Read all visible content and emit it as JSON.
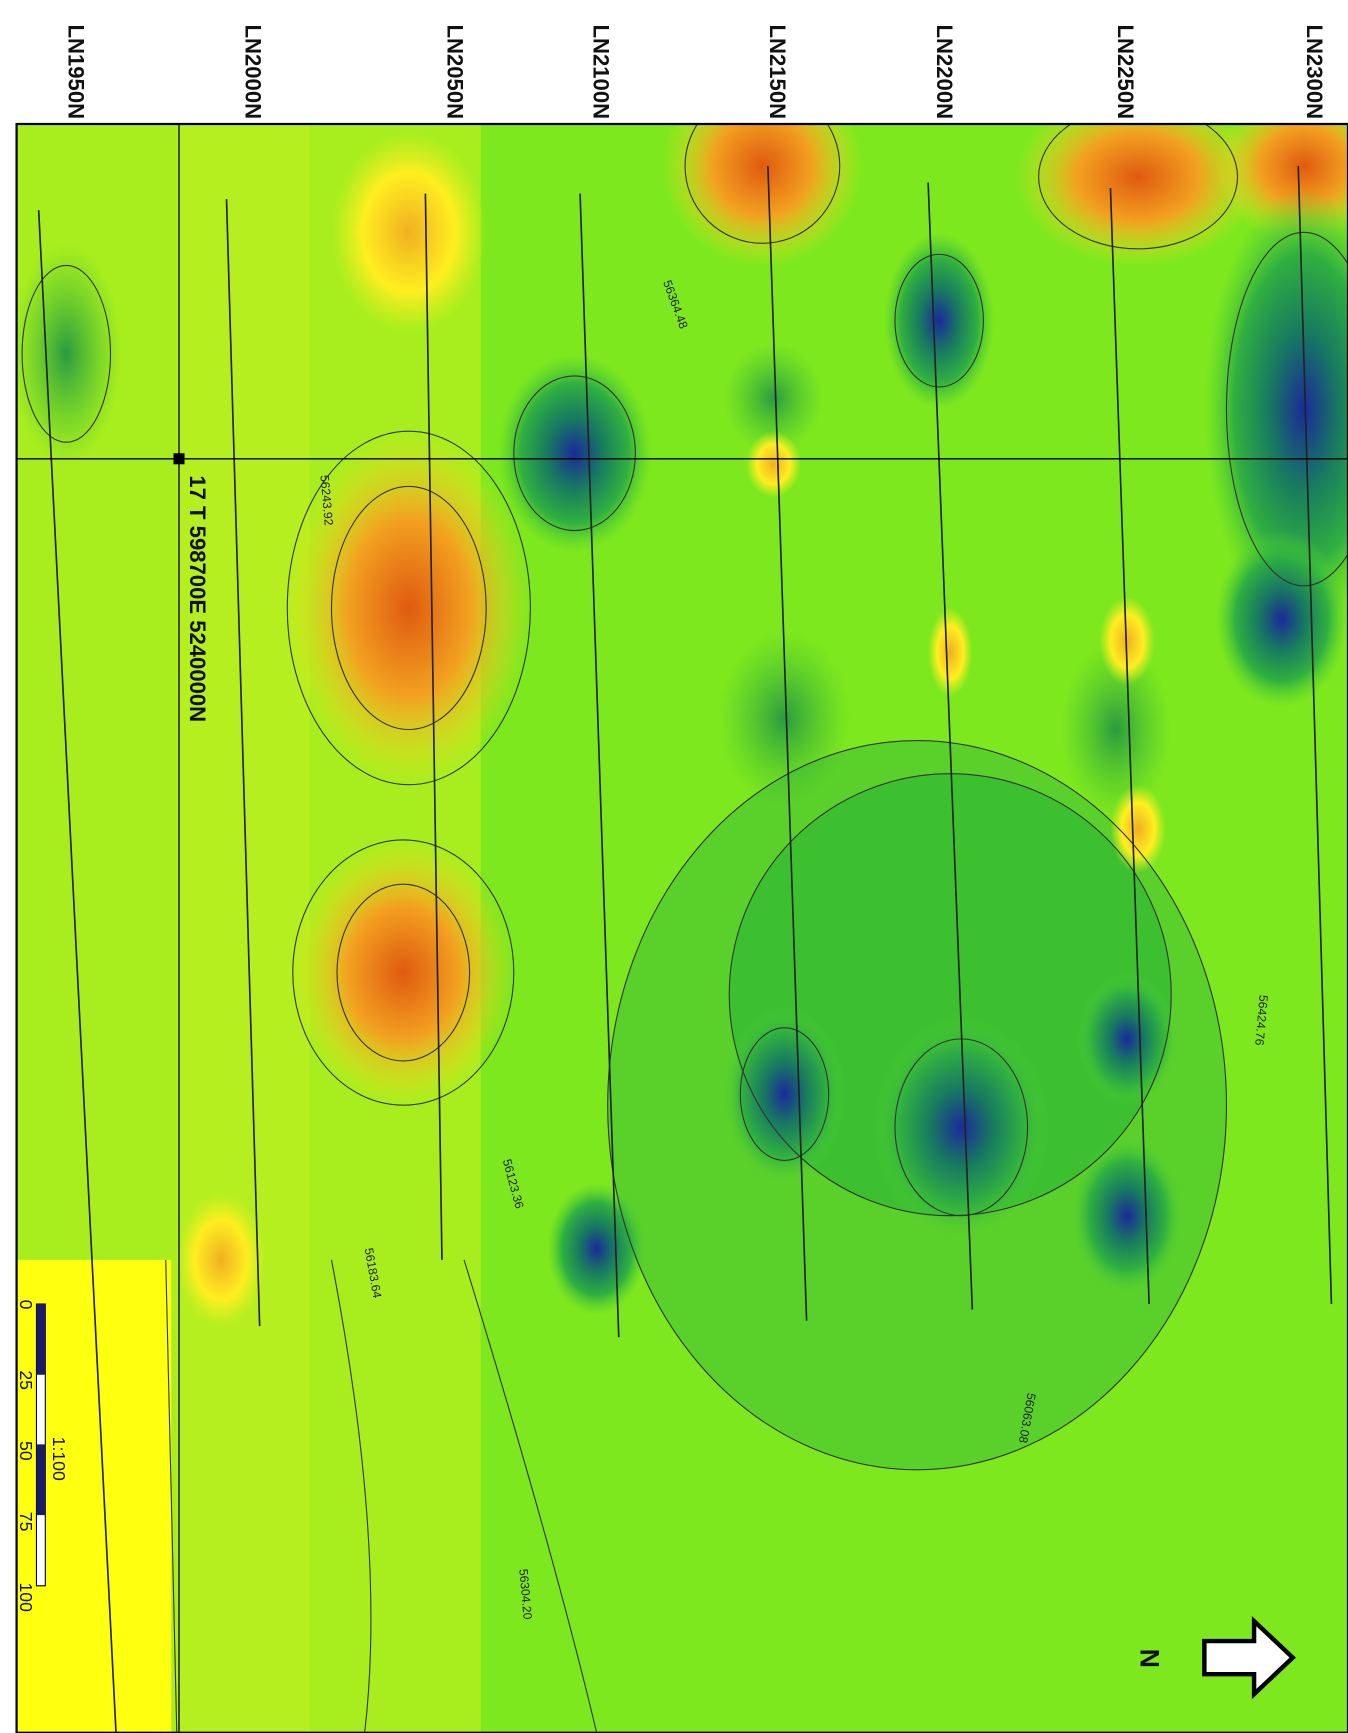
{
  "line_labels": [
    "LN1950N",
    "LN2000N",
    "LN2050N",
    "LN2100N",
    "LN2150N",
    "LN2200N",
    "LN2250N",
    "LN2300N"
  ],
  "grid_label": "17 T 598700E 5240000N",
  "north": "N",
  "scale": {
    "ticks": [
      "0",
      "25",
      "50",
      "75",
      "100"
    ],
    "ratio": "1:100"
  },
  "contour_labels": [
    "56243.92",
    "56183.64",
    "56123.36",
    "56304.20",
    "56364.48",
    "56424.76",
    "56063.08"
  ]
}
